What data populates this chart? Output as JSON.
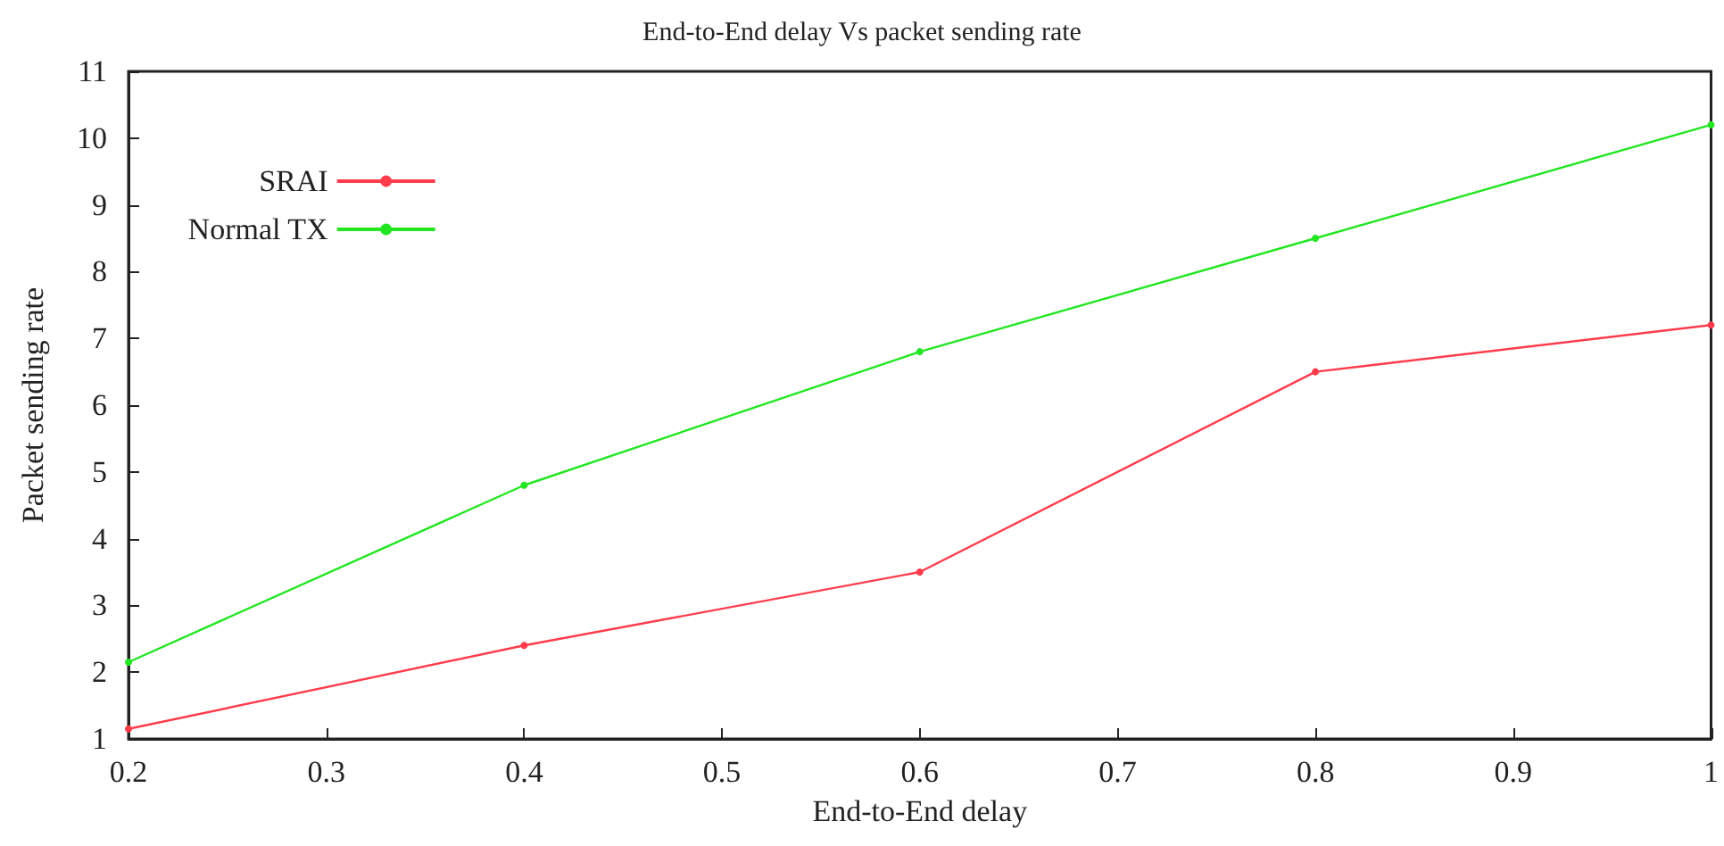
{
  "chart_data": {
    "type": "line",
    "title": "End-to-End delay Vs packet sending rate",
    "xlabel": "End-to-End delay",
    "ylabel": "Packet sending rate",
    "x": [
      0.2,
      0.4,
      0.6,
      0.8,
      1
    ],
    "series": [
      {
        "name": "SRAI",
        "color": "#ff3c4c",
        "values": [
          1.15,
          2.4,
          3.5,
          6.5,
          7.2
        ]
      },
      {
        "name": "Normal TX",
        "color": "#22e622",
        "values": [
          2.15,
          4.8,
          6.8,
          8.5,
          10.2
        ]
      }
    ],
    "xlim": [
      0.2,
      1
    ],
    "xticks": [
      0.2,
      0.3,
      0.4,
      0.5,
      0.6,
      0.7,
      0.8,
      0.9,
      1
    ],
    "ylim": [
      1,
      11
    ],
    "yticks": [
      1,
      2,
      3,
      4,
      5,
      6,
      7,
      8,
      9,
      10,
      11
    ],
    "grid": false,
    "legend": "top left",
    "marker": "circle",
    "line_style": "solid"
  }
}
